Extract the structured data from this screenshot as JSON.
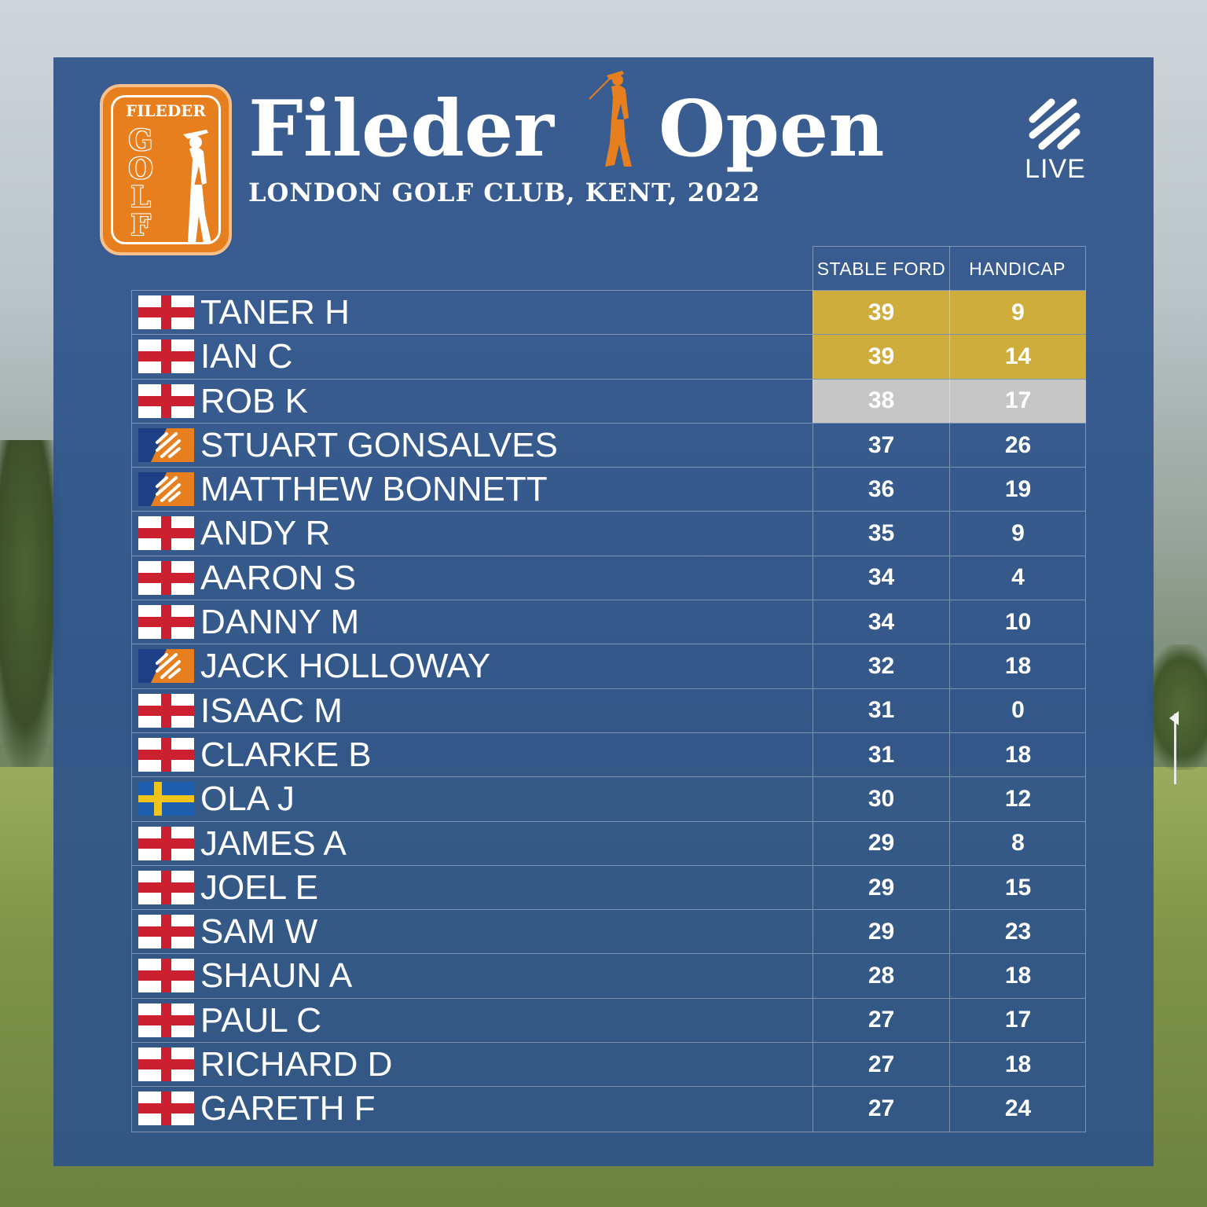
{
  "brand": {
    "badge_top": "FILEDER",
    "badge_letters": [
      "G",
      "O",
      "L",
      "F"
    ],
    "title_word1": "Fileder",
    "title_word2": "Open",
    "subtitle": "LONDON GOLF CLUB, KENT, 2022",
    "live_label": "LIVE",
    "accent_color": "#e77f1f",
    "panel_color": "#2e548b"
  },
  "table": {
    "columns": [
      "STABLE FORD",
      "HANDICAP"
    ],
    "rows": [
      {
        "flag": "england-flag-icon",
        "name": "TANER H",
        "stableford": "39",
        "handicap": "9",
        "highlight": "gold"
      },
      {
        "flag": "england-flag-icon",
        "name": "IAN C",
        "stableford": "39",
        "handicap": "14",
        "highlight": "gold"
      },
      {
        "flag": "england-flag-icon",
        "name": "ROB K",
        "stableford": "38",
        "handicap": "17",
        "highlight": "silver"
      },
      {
        "flag": "live-logo-flag-icon",
        "name": "STUART GONSALVES",
        "stableford": "37",
        "handicap": "26",
        "highlight": ""
      },
      {
        "flag": "live-logo-flag-icon",
        "name": "MATTHEW BONNETT",
        "stableford": "36",
        "handicap": "19",
        "highlight": ""
      },
      {
        "flag": "england-flag-icon",
        "name": "ANDY R",
        "stableford": "35",
        "handicap": "9",
        "highlight": ""
      },
      {
        "flag": "england-flag-icon",
        "name": "AARON S",
        "stableford": "34",
        "handicap": "4",
        "highlight": ""
      },
      {
        "flag": "england-flag-icon",
        "name": "DANNY M",
        "stableford": "34",
        "handicap": "10",
        "highlight": ""
      },
      {
        "flag": "live-logo-flag-icon",
        "name": "JACK HOLLOWAY",
        "stableford": "32",
        "handicap": "18",
        "highlight": ""
      },
      {
        "flag": "england-flag-icon",
        "name": "ISAAC M",
        "stableford": "31",
        "handicap": "0",
        "highlight": ""
      },
      {
        "flag": "england-flag-icon",
        "name": "CLARKE B",
        "stableford": "31",
        "handicap": "18",
        "highlight": ""
      },
      {
        "flag": "sweden-flag-icon",
        "name": "OLA J",
        "stableford": "30",
        "handicap": "12",
        "highlight": ""
      },
      {
        "flag": "england-flag-icon",
        "name": "JAMES A",
        "stableford": "29",
        "handicap": "8",
        "highlight": ""
      },
      {
        "flag": "england-flag-icon",
        "name": "JOEL E",
        "stableford": "29",
        "handicap": "15",
        "highlight": ""
      },
      {
        "flag": "england-flag-icon",
        "name": "SAM W",
        "stableford": "29",
        "handicap": "23",
        "highlight": ""
      },
      {
        "flag": "england-flag-icon",
        "name": "SHAUN A",
        "stableford": "28",
        "handicap": "18",
        "highlight": ""
      },
      {
        "flag": "england-flag-icon",
        "name": "PAUL C",
        "stableford": "27",
        "handicap": "17",
        "highlight": ""
      },
      {
        "flag": "england-flag-icon",
        "name": "RICHARD D",
        "stableford": "27",
        "handicap": "18",
        "highlight": ""
      },
      {
        "flag": "england-flag-icon",
        "name": "GARETH F",
        "stableford": "27",
        "handicap": "24",
        "highlight": ""
      }
    ],
    "highlight_colors": {
      "gold": "#cfad3c",
      "silver": "#c6c6c6"
    }
  }
}
